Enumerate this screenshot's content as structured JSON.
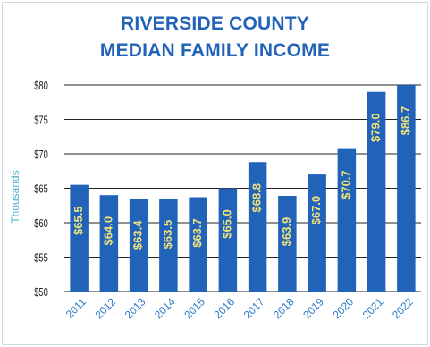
{
  "chart_data": {
    "type": "bar",
    "title_lines": [
      "RIVERSIDE COUNTY",
      "MEDIAN FAMILY INCOME"
    ],
    "ylabel": "Thousands",
    "xlabel": "",
    "categories": [
      "2011",
      "2012",
      "2013",
      "2014",
      "2015",
      "2016",
      "2017",
      "2018",
      "2019",
      "2020",
      "2021",
      "2022"
    ],
    "values": [
      65.5,
      64.0,
      63.4,
      63.5,
      63.7,
      65.0,
      68.8,
      63.9,
      67.0,
      70.7,
      79.0,
      86.7
    ],
    "data_labels": [
      "$65.5",
      "$64.0",
      "$63.4",
      "$63.5",
      "$63.7",
      "$65.0",
      "$68.8",
      "$63.9",
      "$67.0",
      "$70.7",
      "$79.0",
      "$86.7"
    ],
    "yticks": [
      50,
      55,
      60,
      65,
      70,
      75,
      80
    ],
    "ytick_labels": [
      "$50",
      "$55",
      "$60",
      "$65",
      "$70",
      "$75",
      "$80"
    ],
    "ylim": [
      50,
      80
    ],
    "grid": true,
    "colors": {
      "bar": "#2163b8",
      "label": "#f2e27a",
      "title": "#2163b8",
      "axis_label": "#4fb3d1",
      "tick": "#1a1a1a",
      "xtick": "#2a78c8",
      "grid": "#222222"
    }
  }
}
